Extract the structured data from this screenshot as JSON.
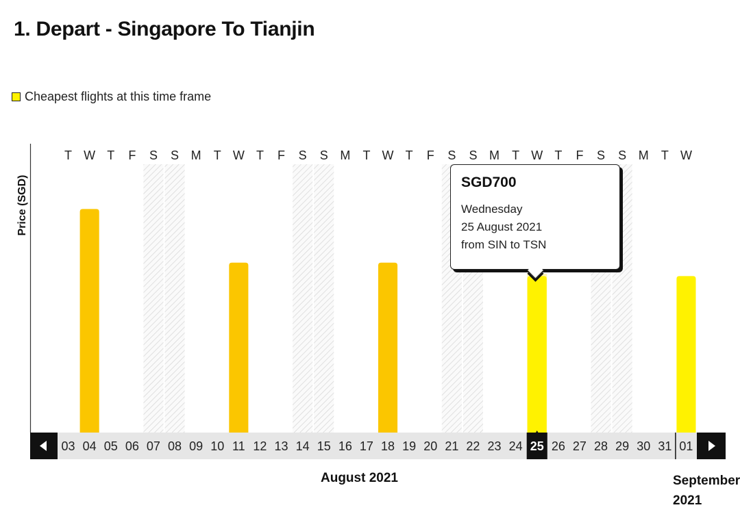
{
  "page_title": "1. Depart - Singapore To Tianjin",
  "legend": {
    "label": "Cheapest flights at this time frame",
    "swatch_color": "#fff200"
  },
  "colors": {
    "bar": "#fbc600",
    "cheapest": "#fff200",
    "selected_bg": "#fff4b5",
    "nav": "#111111",
    "date_bg": "#e6e6e6"
  },
  "navigation": {
    "prev_icon": "caret-left-icon",
    "next_icon": "caret-right-icon"
  },
  "months": {
    "august": "August 2021",
    "september": "September 2021"
  },
  "tooltip": {
    "price": "SGD700",
    "weekday": "Wednesday",
    "date": "25 August 2021",
    "route": "from SIN to TSN"
  },
  "chart_data": {
    "type": "bar",
    "ylabel": "Price (SGD)",
    "weekdays": [
      "T",
      "W",
      "T",
      "F",
      "S",
      "S",
      "M",
      "T",
      "W",
      "T",
      "F",
      "S",
      "S",
      "M",
      "T",
      "W",
      "T",
      "F",
      "S",
      "S",
      "M",
      "T",
      "W",
      "T",
      "F",
      "S",
      "S",
      "M",
      "T",
      "W"
    ],
    "categories": [
      "03",
      "04",
      "05",
      "06",
      "07",
      "08",
      "09",
      "10",
      "11",
      "12",
      "13",
      "14",
      "15",
      "16",
      "17",
      "18",
      "19",
      "20",
      "21",
      "22",
      "23",
      "24",
      "25",
      "26",
      "27",
      "28",
      "29",
      "30",
      "31",
      "01"
    ],
    "weekend_days": [
      "07",
      "08",
      "14",
      "15",
      "21",
      "22",
      "28",
      "29"
    ],
    "values": [
      null,
      1000,
      null,
      null,
      null,
      null,
      null,
      null,
      760,
      null,
      null,
      null,
      null,
      null,
      null,
      760,
      null,
      null,
      null,
      null,
      null,
      null,
      700,
      null,
      null,
      null,
      null,
      null,
      null,
      700
    ],
    "cheapest_days": [
      "25",
      "01"
    ],
    "selected_day": "25",
    "ylim": [
      0,
      1200
    ]
  }
}
